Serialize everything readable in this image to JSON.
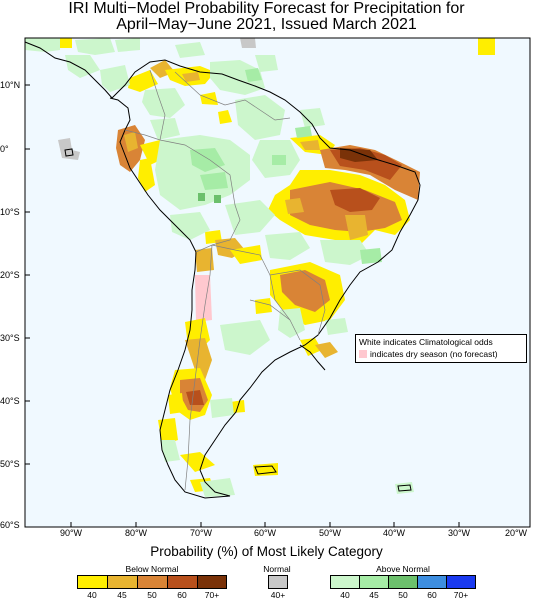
{
  "title_line1": "IRI Multi−Model Probability Forecast for Precipitation for",
  "title_line2": "April−May−June 2021, Issued March 2021",
  "lat_labels": [
    "10°N",
    "0°",
    "10°S",
    "20°S",
    "30°S",
    "40°S",
    "50°S",
    "60°S"
  ],
  "lon_labels": [
    "90°W",
    "80°W",
    "70°W",
    "60°W",
    "50°W",
    "40°W",
    "30°W",
    "20°W"
  ],
  "note": {
    "line1": "White indicates Climatological odds",
    "line2": "indicates dry season (no forecast)"
  },
  "legend": {
    "title": "Probability (%) of Most Likely Category",
    "below_normal": {
      "label": "Below Normal",
      "colors": [
        "#ffee00",
        "#e8b430",
        "#d98436",
        "#b8501c",
        "#7a3208"
      ],
      "ticks": [
        "40",
        "45",
        "50",
        "60",
        "70+"
      ]
    },
    "normal": {
      "label": "Normal",
      "colors": [
        "#c8c8c8"
      ],
      "ticks": [
        "40+"
      ]
    },
    "above_normal": {
      "label": "Above Normal",
      "colors": [
        "#ccf6cc",
        "#a6eca6",
        "#6cc06c",
        "#3d8ee0",
        "#1a3af0"
      ],
      "ticks": [
        "40",
        "45",
        "50",
        "60",
        "70+"
      ]
    }
  },
  "colors": {
    "dry_season": "#ffc8cf",
    "background": "#ffffff",
    "land_base": "#f0f9ff"
  }
}
